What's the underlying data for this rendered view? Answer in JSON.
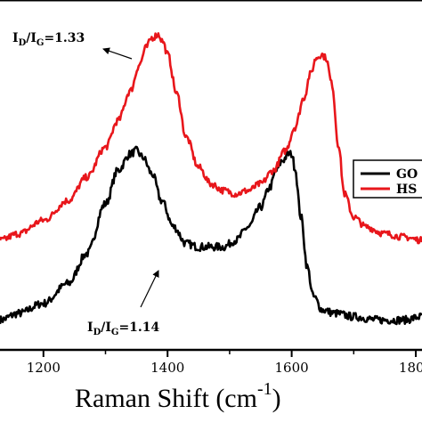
{
  "chart_data": {
    "type": "line",
    "xlabel": "Raman Shift (cm",
    "xlabel_superscript": "-1",
    "xlabel_close": ")",
    "ylabel": "",
    "xlim": [
      1130,
      1810
    ],
    "ylim": [
      0,
      1.0
    ],
    "x_ticks": [
      {
        "value": 1200,
        "label": "1200"
      },
      {
        "value": 1400,
        "label": "1400"
      },
      {
        "value": 1600,
        "label": "1600"
      },
      {
        "value": 1800,
        "label": "1800"
      }
    ],
    "legend": {
      "placement": "right",
      "entries": [
        "GO",
        "HS"
      ]
    },
    "colors": {
      "GO": "#000000",
      "HS": "#e8161b"
    },
    "series": [
      {
        "name": "GO",
        "color": "#000000",
        "noise": 0.012,
        "x": [
          1130,
          1160,
          1200,
          1240,
          1270,
          1300,
          1320,
          1340,
          1350,
          1360,
          1375,
          1390,
          1410,
          1430,
          1450,
          1470,
          1490,
          1510,
          1530,
          1550,
          1565,
          1575,
          1585,
          1595,
          1600,
          1605,
          1615,
          1625,
          1635,
          1650,
          1670,
          1700,
          1740,
          1780,
          1810
        ],
        "y": [
          0.09,
          0.11,
          0.14,
          0.2,
          0.29,
          0.44,
          0.54,
          0.59,
          0.6,
          0.58,
          0.53,
          0.45,
          0.37,
          0.32,
          0.31,
          0.31,
          0.31,
          0.33,
          0.37,
          0.43,
          0.49,
          0.54,
          0.57,
          0.59,
          0.59,
          0.55,
          0.4,
          0.25,
          0.16,
          0.12,
          0.11,
          0.1,
          0.09,
          0.09,
          0.1
        ]
      },
      {
        "name": "HS",
        "color": "#e8161b",
        "noise": 0.01,
        "x": [
          1130,
          1160,
          1200,
          1240,
          1270,
          1300,
          1320,
          1340,
          1355,
          1365,
          1375,
          1385,
          1392,
          1400,
          1415,
          1430,
          1450,
          1470,
          1490,
          1510,
          1530,
          1550,
          1570,
          1590,
          1605,
          1620,
          1630,
          1640,
          1648,
          1655,
          1665,
          1675,
          1685,
          1700,
          1720,
          1750,
          1780,
          1810
        ],
        "y": [
          0.33,
          0.35,
          0.39,
          0.45,
          0.52,
          0.61,
          0.69,
          0.78,
          0.86,
          0.91,
          0.94,
          0.95,
          0.93,
          0.89,
          0.77,
          0.64,
          0.55,
          0.5,
          0.48,
          0.47,
          0.48,
          0.5,
          0.54,
          0.6,
          0.67,
          0.76,
          0.83,
          0.88,
          0.89,
          0.88,
          0.8,
          0.62,
          0.47,
          0.4,
          0.37,
          0.35,
          0.34,
          0.33
        ]
      }
    ],
    "annotations": [
      {
        "main": "I",
        "sub1": "D",
        "slash": "/I",
        "sub2": "G",
        "value": "=1.33",
        "series": "HS"
      },
      {
        "main": "I",
        "sub1": "D",
        "slash": "/I",
        "sub2": "G",
        "value": "=1.14",
        "series": "GO"
      }
    ]
  }
}
